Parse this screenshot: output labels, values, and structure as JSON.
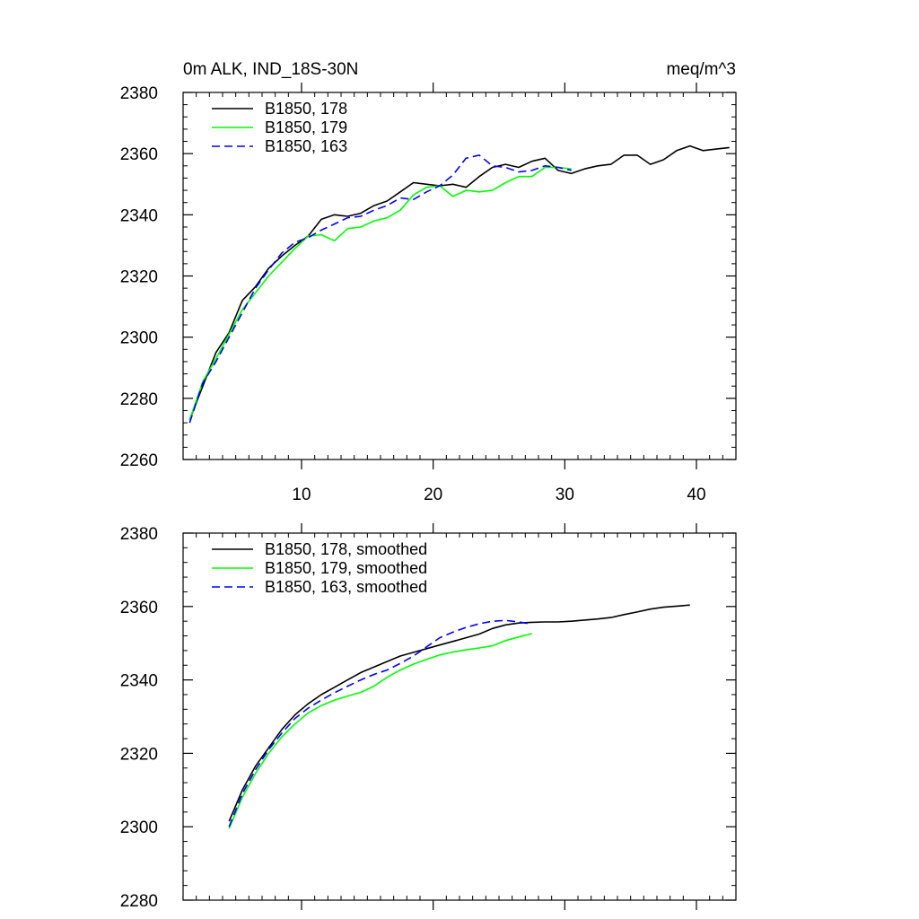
{
  "title_left": "0m ALK, IND_18S-30N",
  "title_right": "meq/m^3",
  "colors": {
    "s178": "#000000",
    "s179": "#00ff00",
    "s163": "#0000ff"
  },
  "chart_data": [
    {
      "type": "line",
      "xlim": [
        1,
        43
      ],
      "ylim": [
        2260,
        2380
      ],
      "x_major_ticks": [
        10,
        20,
        30,
        40
      ],
      "x_minor_step": 1,
      "y_major_ticks": [
        2260,
        2280,
        2300,
        2320,
        2340,
        2360,
        2380
      ],
      "y_minor_step": 4,
      "x_tick_labels_shown": true,
      "legend_position": "top-left",
      "grid": false,
      "series": [
        {
          "name": "B1850, 178",
          "color_key": "s178",
          "dash": "solid",
          "x": [
            1.5,
            2.5,
            3.5,
            4.5,
            5.5,
            6.5,
            7.5,
            8.5,
            9.5,
            10.5,
            11.5,
            12.5,
            13.5,
            14.5,
            15.5,
            16.5,
            17.5,
            18.5,
            19.5,
            20.5,
            21.5,
            22.5,
            23.5,
            24.5,
            25.5,
            26.5,
            27.5,
            28.5,
            29.5,
            30.5,
            31.5,
            32.5,
            33.5,
            34.5,
            35.5,
            36.5,
            37.5,
            38.5,
            39.5,
            40.5,
            41.5,
            42.5
          ],
          "values": [
            2273,
            2284,
            2295,
            2301.5,
            2312,
            2316.5,
            2322.5,
            2326.5,
            2330,
            2333,
            2338.5,
            2340,
            2339.5,
            2340.5,
            2343,
            2344.5,
            2347.5,
            2350.5,
            2350,
            2349.5,
            2350,
            2349,
            2352.5,
            2355.5,
            2356.5,
            2355.5,
            2357.5,
            2358.5,
            2354.5,
            2353.5,
            2355,
            2356,
            2356.5,
            2359.5,
            2359.5,
            2356.5,
            2358,
            2361,
            2362.5,
            2361,
            2361.5,
            2362
          ]
        },
        {
          "name": "B1850, 179",
          "color_key": "s179",
          "dash": "solid",
          "x": [
            1.5,
            2.5,
            3.5,
            4.5,
            5.5,
            6.5,
            7.5,
            8.5,
            9.5,
            10.5,
            11.5,
            12.5,
            13.5,
            14.5,
            15.5,
            16.5,
            17.5,
            18.5,
            19.5,
            20.5,
            21.5,
            22.5,
            23.5,
            24.5,
            25.5,
            26.5,
            27.5,
            28.5,
            29.5,
            30.5
          ],
          "values": [
            2273,
            2285.5,
            2293,
            2301,
            2309,
            2314.5,
            2320,
            2324.5,
            2329,
            2333,
            2333.5,
            2331.5,
            2335.5,
            2336,
            2338,
            2339,
            2341.5,
            2346.5,
            2349,
            2349.5,
            2346,
            2348,
            2347.5,
            2348,
            2350.5,
            2352.5,
            2352.5,
            2355.5,
            2355.5,
            2355
          ]
        },
        {
          "name": "B1850, 163",
          "color_key": "s163",
          "dash": "dashed",
          "x": [
            1.5,
            2.5,
            3.5,
            4.5,
            5.5,
            6.5,
            7.5,
            8.5,
            9.5,
            10.5,
            11.5,
            12.5,
            13.5,
            14.5,
            15.5,
            16.5,
            17.5,
            18.5,
            19.5,
            20.5,
            21.5,
            22.5,
            23.5,
            24.5,
            25.5,
            26.5,
            27.5,
            28.5,
            29.5,
            30.5
          ],
          "values": [
            2272,
            2285,
            2292,
            2300,
            2308,
            2316,
            2322,
            2327.5,
            2331,
            2332.5,
            2335,
            2337,
            2339,
            2339.5,
            2341.5,
            2343,
            2345.5,
            2345,
            2347.5,
            2349.5,
            2353,
            2358.5,
            2359.5,
            2356,
            2355.5,
            2354,
            2354.5,
            2356,
            2355.5,
            2354.5
          ]
        }
      ]
    },
    {
      "type": "line",
      "xlim": [
        1,
        43
      ],
      "ylim": [
        2280,
        2380
      ],
      "x_major_ticks": [
        10,
        20,
        30,
        40
      ],
      "x_minor_step": 1,
      "y_major_ticks": [
        2280,
        2300,
        2320,
        2340,
        2360,
        2380
      ],
      "y_minor_step": 4,
      "x_tick_labels_shown": false,
      "legend_position": "top-left",
      "grid": false,
      "series": [
        {
          "name": "B1850, 178, smoothed",
          "color_key": "s178",
          "dash": "solid",
          "x": [
            4.5,
            5.5,
            6.5,
            7.5,
            8.5,
            9.5,
            10.5,
            11.5,
            12.5,
            13.5,
            14.5,
            15.5,
            16.5,
            17.5,
            18.5,
            19.5,
            20.5,
            21.5,
            22.5,
            23.5,
            24.5,
            25.5,
            26.5,
            27.5,
            28.5,
            29.5,
            30.5,
            31.5,
            32.5,
            33.5,
            34.5,
            35.5,
            36.5,
            37.5,
            38.5,
            39.5
          ],
          "values": [
            2301.5,
            2310,
            2316.5,
            2321.5,
            2326.5,
            2330.5,
            2333.5,
            2336,
            2338,
            2340,
            2342,
            2343.5,
            2345,
            2346.5,
            2347.5,
            2348.5,
            2349.5,
            2350.5,
            2351.5,
            2352.5,
            2354,
            2355,
            2355.5,
            2355.7,
            2355.8,
            2355.8,
            2356,
            2356.3,
            2356.6,
            2357,
            2357.8,
            2358.5,
            2359.3,
            2359.8,
            2360.1,
            2360.4
          ]
        },
        {
          "name": "B1850, 179, smoothed",
          "color_key": "s179",
          "dash": "solid",
          "x": [
            4.5,
            5.5,
            6.5,
            7.5,
            8.5,
            9.5,
            10.5,
            11.5,
            12.5,
            13.5,
            14.5,
            15.5,
            16.5,
            17.5,
            18.5,
            19.5,
            20.5,
            21.5,
            22.5,
            23.5,
            24.5,
            25.5,
            26.5,
            27.5
          ],
          "values": [
            2299.5,
            2308,
            2314.5,
            2320,
            2324.5,
            2328,
            2331,
            2333,
            2334.5,
            2335.6,
            2336.6,
            2338.3,
            2340.7,
            2342.7,
            2344.3,
            2345.6,
            2346.8,
            2347.6,
            2348.2,
            2348.7,
            2349.3,
            2350.7,
            2351.7,
            2352.6
          ]
        },
        {
          "name": "B1850, 163, smoothed",
          "color_key": "s163",
          "dash": "dashed",
          "x": [
            4.5,
            5.5,
            6.5,
            7.5,
            8.5,
            9.5,
            10.5,
            11.5,
            12.5,
            13.5,
            14.5,
            15.5,
            16.5,
            17.5,
            18.5,
            19.5,
            20.5,
            21.5,
            22.5,
            23.5,
            24.5,
            25.5,
            26.5,
            27.5
          ],
          "values": [
            2300,
            2309,
            2315.5,
            2321,
            2325.5,
            2329.5,
            2332.3,
            2334.5,
            2336.5,
            2338.3,
            2340,
            2341.5,
            2342.7,
            2344.5,
            2346.5,
            2349,
            2351.5,
            2353,
            2354.3,
            2355.3,
            2356,
            2356.2,
            2355.8,
            2355.2
          ]
        }
      ]
    }
  ]
}
